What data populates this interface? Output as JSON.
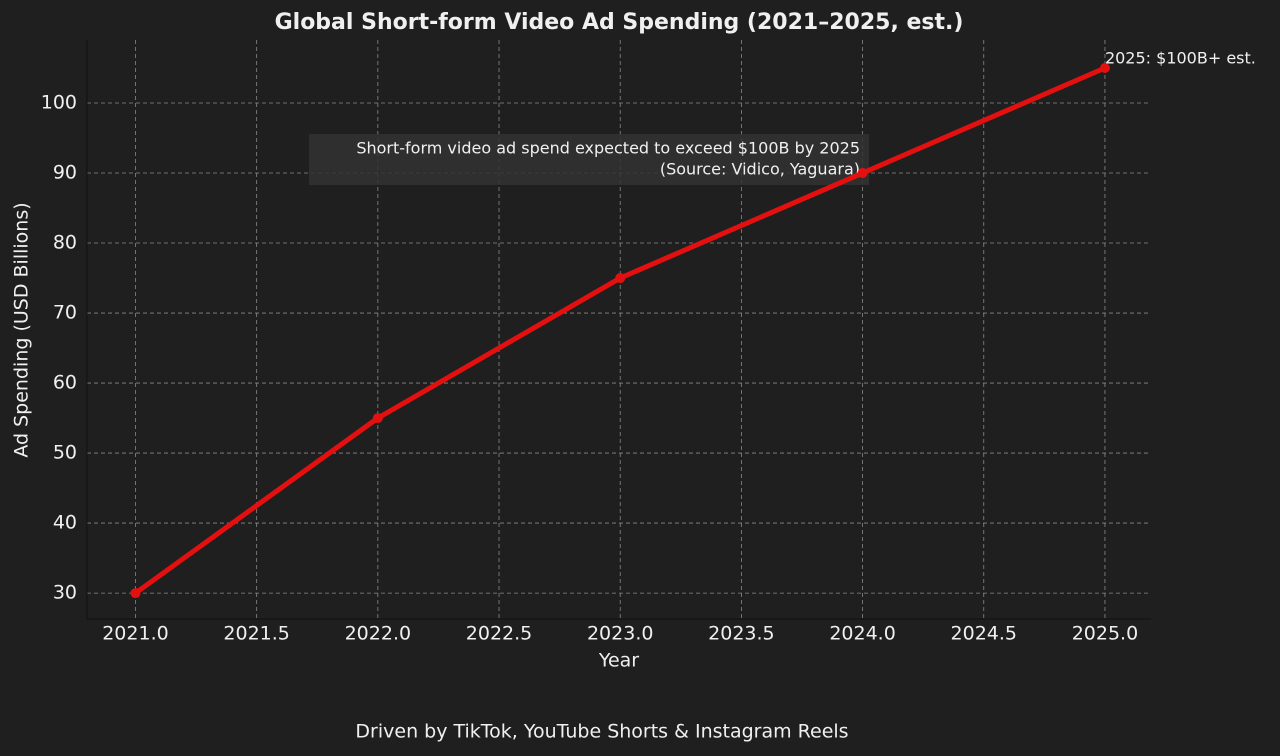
{
  "chart_data": {
    "type": "line",
    "title": "Global Short-form Video Ad Spending (2021–2025, est.)",
    "x_label": "Year",
    "y_label": "Ad Spending (USD Billions)",
    "x": [
      2021,
      2022,
      2023,
      2024,
      2025
    ],
    "series": [
      {
        "name": "Ad Spending",
        "color": "#e41010",
        "values": [
          30,
          55,
          75,
          90,
          105
        ]
      }
    ],
    "xlim": [
      2020.8,
      2025.19
    ],
    "ylim": [
      26.3,
      109
    ],
    "xticks": [
      {
        "value": 2021,
        "label": "2021.0"
      },
      2021.5,
      {
        "value": 2022,
        "label": "2022.0"
      },
      2022.5,
      {
        "value": 2023,
        "label": "2023.0"
      },
      2023.5,
      {
        "value": 2024,
        "label": "2024.0"
      },
      2024.5,
      {
        "value": 2025,
        "label": "2025.0"
      }
    ],
    "yticks": [
      30,
      40,
      50,
      60,
      70,
      80,
      90,
      100
    ],
    "grid": true,
    "annotations": [
      "2025: $100B+ est.",
      "Short-form video ad spend expected to exceed $100B by 2025",
      "(Source: Vidico, Yaguara)"
    ],
    "footer": "Driven by TikTok, YouTube Shorts & Instagram Reels"
  }
}
